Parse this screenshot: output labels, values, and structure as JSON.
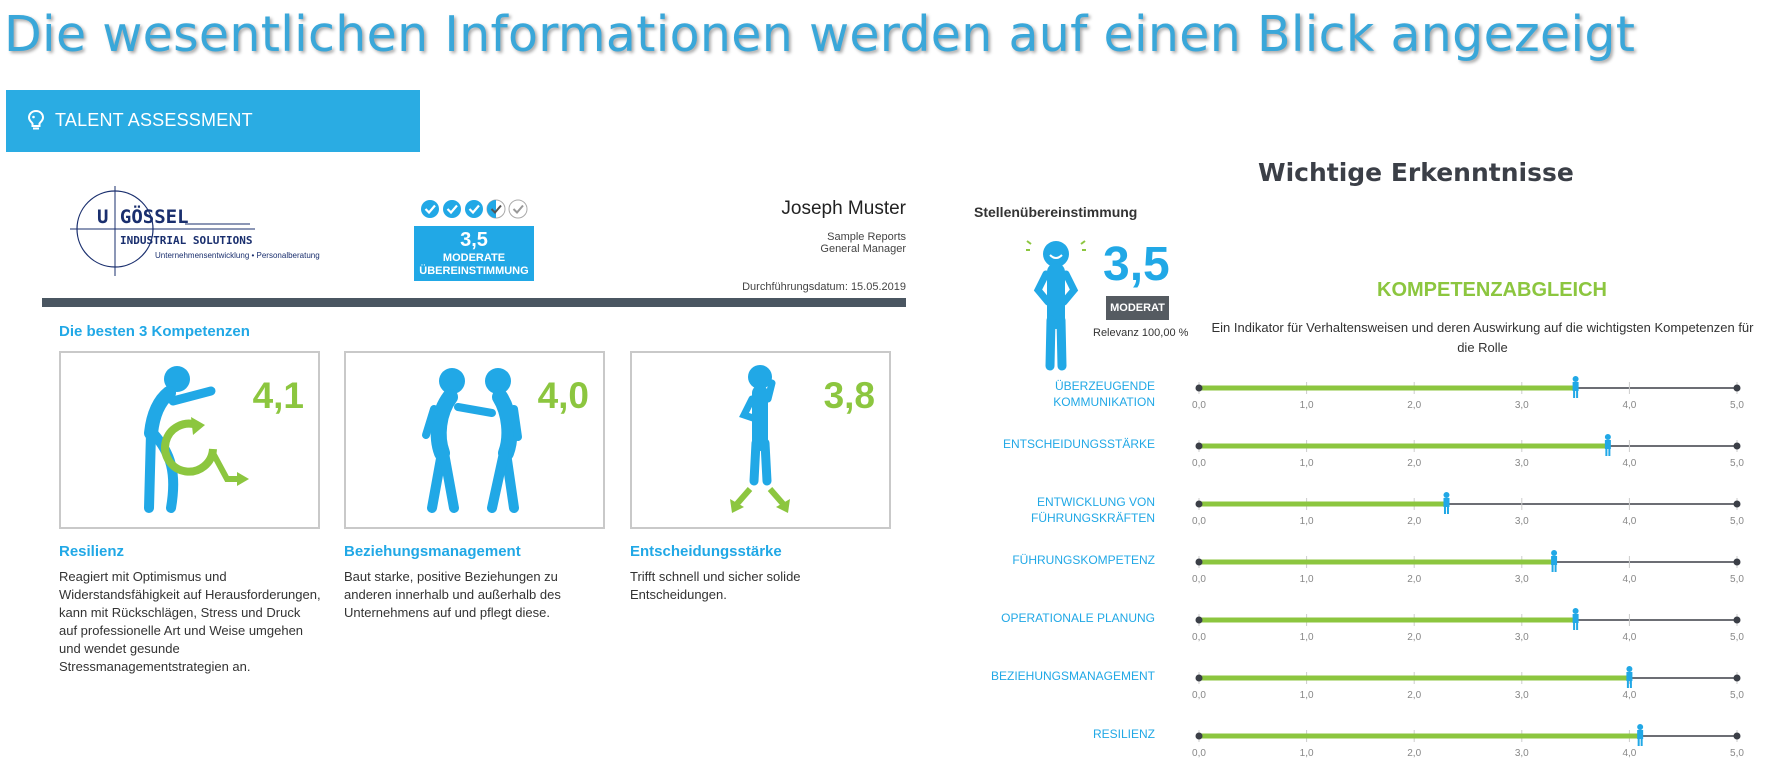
{
  "headline": "Die wesentlichen Informationen werden auf einen Blick angezeigt",
  "banner": {
    "icon": "lightbulb-icon",
    "label": "TALENT ASSESSMENT"
  },
  "logo": {
    "line1": "U GÖSSEL",
    "line2": "INDUSTRIAL SOLUTIONS",
    "tagline": "Unternehmensentwicklung • Personalberatung"
  },
  "report": {
    "match_score": "3,5",
    "match_label_1": "MODERATE",
    "match_label_2": "ÜBEREINSTIMMUNG",
    "checks_filled": 3.5,
    "checks_total": 5,
    "person_name": "Joseph Muster",
    "subtitle_1": "Sample Reports",
    "subtitle_2": "General Manager",
    "date": "Durchführungsdatum: 15.05.2019"
  },
  "best": {
    "title": "Die besten 3 Kompetenzen",
    "items": [
      {
        "score": "4,1",
        "title": "Resilienz",
        "desc": "Reagiert mit Optimismus und Widerstandsfähigkeit auf Herausforderungen, kann mit Rückschlägen, Stress und Druck auf professionelle Art und Weise umgehen und wendet gesunde Stressmanagementstrategien an."
      },
      {
        "score": "4,0",
        "title": "Beziehungsmanagement",
        "desc": "Baut starke, positive Beziehungen zu anderen innerhalb und außerhalb des Unternehmens auf und pflegt diese."
      },
      {
        "score": "3,8",
        "title": "Entscheidungsstärke",
        "desc": "Trifft schnell und sicher solide Entscheidungen."
      }
    ]
  },
  "insights": {
    "title": "Wichtige Erkenntnisse",
    "match_label": "Stellenübereinstimmung",
    "score": "3,5",
    "badge": "MODERAT",
    "relevanz": "Relevanz 100,00 %",
    "kompetenz_title": "KOMPETENZABGLEICH",
    "kompetenz_desc": "Ein Indikator für Verhaltensweisen und deren Auswirkung auf die wichtigsten Kompetenzen für die Rolle"
  },
  "chart_data": {
    "type": "bar",
    "categories": [
      "ÜBERZEUGENDE KOMMUNIKATION",
      "ENTSCHEIDUNGSSTÄRKE",
      "ENTWICKLUNG VON FÜHRUNGSKRÄFTEN",
      "FÜHRUNGSKOMPETENZ",
      "OPERATIONALE PLANUNG",
      "BEZIEHUNGSMANAGEMENT",
      "RESILIENZ"
    ],
    "values": [
      3.5,
      3.8,
      2.3,
      3.3,
      3.5,
      4.0,
      4.1
    ],
    "xlim": [
      0,
      5
    ],
    "ticks": [
      "0,0",
      "1,0",
      "2,0",
      "3,0",
      "4,0",
      "5,0"
    ],
    "bar_color": "#8cc63f",
    "marker_color": "#21a8e6",
    "track_color": "#3b3f47"
  },
  "colors": {
    "accent_blue": "#21a8e6",
    "accent_green": "#8cc63f",
    "dark": "#4a5661"
  }
}
